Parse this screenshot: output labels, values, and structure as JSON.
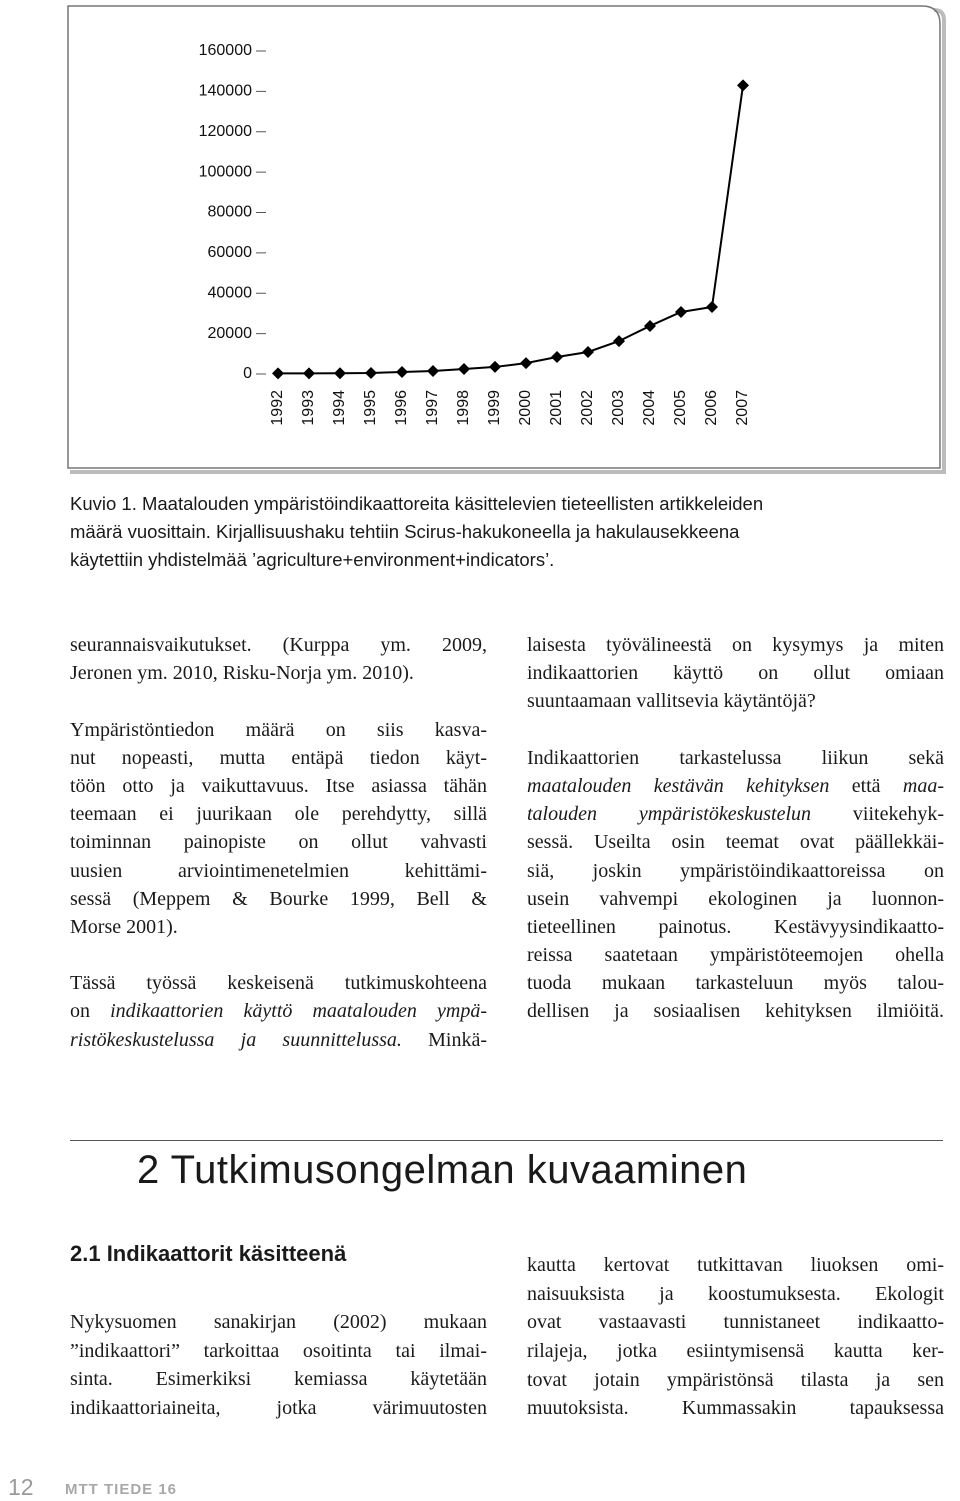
{
  "chart_data": {
    "type": "line",
    "categories": [
      "1992",
      "1993",
      "1994",
      "1995",
      "1996",
      "1997",
      "1998",
      "1999",
      "2000",
      "2001",
      "2002",
      "2003",
      "2004",
      "2005",
      "2006",
      "2007"
    ],
    "values": [
      300,
      300,
      400,
      500,
      1000,
      1500,
      2500,
      3500,
      5400,
      8400,
      10900,
      16300,
      23800,
      30700,
      33200,
      143000
    ],
    "color": "#000000",
    "ylim": [
      0,
      160000
    ],
    "yticks": [
      0,
      20000,
      40000,
      60000,
      80000,
      100000,
      120000,
      140000,
      160000
    ]
  },
  "caption": [
    "Kuvio 1. Maatalouden ympäristöindikaattoreita käsittelevien tieteellisten artikkeleiden",
    "määrä vuosittain. Kirjallisuushaku tehtiin Scirus-hakukoneella ja hakulausekkeena",
    "käytettiin yhdistelmää ’agriculture+environment+indicators’."
  ],
  "body": {
    "columns": [
      {
        "paragraphs": [
          {
            "lines": [
              "seurannaisvaikutukset. (Kurppa ym. 2009,",
              "Jeronen ym. 2010, Risku-Norja ym. 2010)."
            ]
          },
          {
            "lines": [
              "Ympäristöntiedon määrä on siis kasva-",
              "nut nopeasti, mutta entäpä tiedon käyt-",
              "töön otto ja vaikuttavuus. Itse asiassa tähän",
              "teemaan ei juurikaan ole perehdytty, sillä",
              "toiminnan painopiste on ollut vahvasti",
              "uusien arviointimenetelmien kehittämi-",
              "sessä (Meppem & Bourke 1999, Bell &",
              "Morse 2001)."
            ]
          },
          {
            "lines": [
              "Tässä työssä keskeisenä tutkimuskohteena",
              [
                "on ",
                {
                  "italic": "indikaattorien käyttö maatalouden ympä-"
                }
              ],
              [
                {
                  "italic": "ristökeskustelussa ja suunnittelussa."
                },
                " Minkä-"
              ]
            ]
          }
        ]
      },
      {
        "paragraphs": [
          {
            "lines": [
              "laisesta työvälineestä on kysymys ja miten",
              "indikaattorien käyttö on ollut omiaan",
              "suuntaamaan vallitsevia käytäntöjä?"
            ]
          },
          {
            "lines": [
              "Indikaattorien tarkastelussa liikun sekä",
              [
                {
                  "italic": "maatalouden kestävän kehityksen"
                },
                " että ",
                {
                  "italic": "maa-"
                }
              ],
              [
                {
                  "italic": "talouden ympäristökeskustelun"
                },
                " viitekehyk-"
              ],
              "sessä. Useilta osin teemat ovat päällekkäi-",
              "siä, joskin ympäristöindikaattoreissa on",
              "usein vahvempi ekologinen ja luonnon-",
              "tieteellinen painotus. Kestävyysindikaatto-",
              "reissa saatetaan ympäristöteemojen ohella",
              "tuoda mukaan tarkasteluun myös talou-",
              "dellisen ja sosiaalisen kehityksen ilmiöitä."
            ]
          }
        ]
      }
    ]
  },
  "heading": "2 Tutkimusongelman kuvaaminen",
  "subheading": "2.1 Indikaattorit käsitteenä",
  "body2": {
    "columns": [
      {
        "paragraphs": [
          {
            "lines": [
              "Nykysuomen sanakirjan (2002) mukaan",
              "”indikaattori” tarkoittaa osoitinta tai ilmai-",
              "sinta. Esimerkiksi kemiassa käytetään",
              "indikaattoriaineita, jotka värimuutosten"
            ]
          }
        ]
      },
      {
        "paragraphs": [
          {
            "lines": [
              "kautta kertovat tutkittavan liuoksen omi-",
              "naisuuksista ja koostumuksesta. Ekologit",
              "ovat vastaavasti tunnistaneet indikaatto-",
              "rilajeja, jotka esiintymisensä kautta ker-",
              "tovat jotain ympäristönsä tilasta ja sen",
              "muutoksista. Kummassakin tapauksessa"
            ]
          }
        ]
      }
    ]
  },
  "footer": {
    "page": "12",
    "publication": "MTT TIEDE 16"
  }
}
